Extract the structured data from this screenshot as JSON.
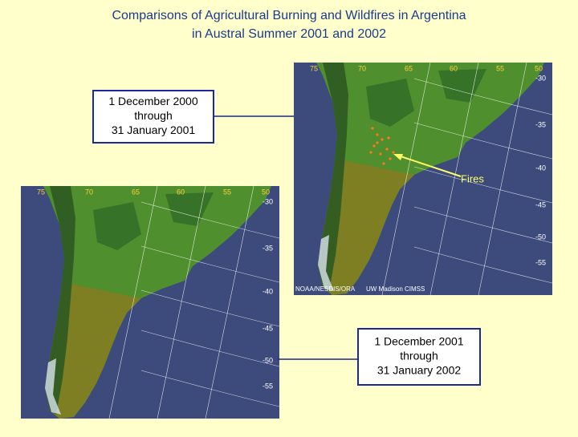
{
  "header": {
    "title_lines": [
      "Comparisons of Agricultural Burning and Wildfires in Argentina",
      "in Austral Summer 2001 and 2002"
    ]
  },
  "maps": [
    {
      "period_lines": [
        "1 December 2000",
        "through",
        "31 January 2001"
      ],
      "longitude_labels": [
        "75",
        "70",
        "65",
        "60",
        "55",
        "50"
      ],
      "latitude_labels": [
        "-30",
        "-35",
        "-40",
        "-45",
        "-50",
        "-55"
      ],
      "credits": [
        "NOAA/NESDIS/ORA",
        "UW Madison CIMSS"
      ]
    },
    {
      "period_lines": [
        "1 December 2001",
        "through",
        "31 January 2002"
      ],
      "longitude_labels": [
        "75",
        "70",
        "65",
        "60",
        "55",
        "50"
      ],
      "latitude_labels": [
        "-30",
        "-35",
        "-40",
        "-45",
        "-50",
        "-55"
      ]
    }
  ],
  "annotation": "Fires"
}
